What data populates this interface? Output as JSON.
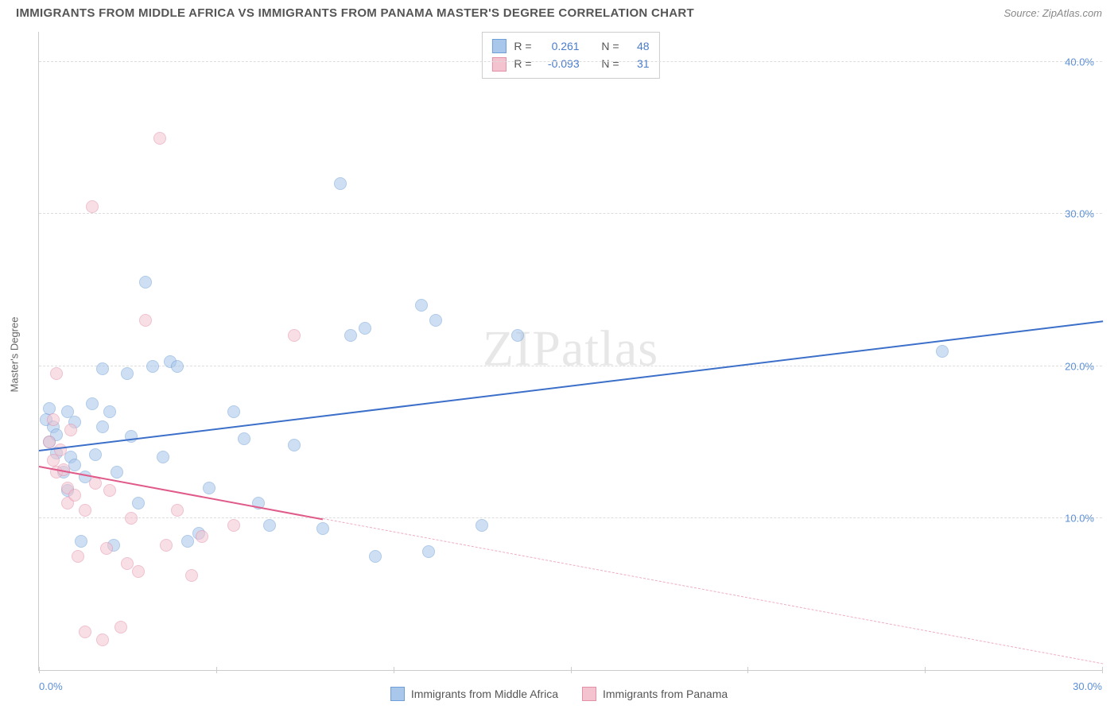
{
  "title": "IMMIGRANTS FROM MIDDLE AFRICA VS IMMIGRANTS FROM PANAMA MASTER'S DEGREE CORRELATION CHART",
  "source": "Source: ZipAtlas.com",
  "watermark": "ZIPatlas",
  "y_axis_label": "Master's Degree",
  "chart": {
    "type": "scatter",
    "xlim": [
      0,
      30
    ],
    "ylim": [
      0,
      42
    ],
    "x_ticks": [
      0,
      5,
      10,
      15,
      20,
      25,
      30
    ],
    "x_tick_labels": {
      "0": "0.0%",
      "30": "30.0%"
    },
    "y_gridlines": [
      10,
      20,
      30,
      40
    ],
    "y_tick_labels": {
      "10": "10.0%",
      "20": "20.0%",
      "30": "30.0%",
      "40": "40.0%"
    },
    "background_color": "#ffffff",
    "grid_color": "#dddddd",
    "axis_color": "#cccccc",
    "tick_label_color": "#5b8fd6",
    "marker_radius": 8,
    "marker_opacity": 0.55,
    "series": [
      {
        "name": "Immigrants from Middle Africa",
        "fill": "#a9c6eb",
        "stroke": "#6f9fd8",
        "trend_color": "#3b6fc9",
        "r_label": "R =",
        "r_value": "0.261",
        "n_label": "N =",
        "n_value": "48",
        "trend": {
          "x1": 0,
          "y1": 14.5,
          "x2": 30,
          "y2": 23
        },
        "trend_solid_until_x": 30,
        "points": [
          [
            0.2,
            16.5
          ],
          [
            0.3,
            15.0
          ],
          [
            0.3,
            17.2
          ],
          [
            0.4,
            16.0
          ],
          [
            0.5,
            14.3
          ],
          [
            0.5,
            15.5
          ],
          [
            0.7,
            13.0
          ],
          [
            0.8,
            11.8
          ],
          [
            0.8,
            17.0
          ],
          [
            0.9,
            14.0
          ],
          [
            1.0,
            16.3
          ],
          [
            1.0,
            13.5
          ],
          [
            1.2,
            8.5
          ],
          [
            1.3,
            12.7
          ],
          [
            1.5,
            17.5
          ],
          [
            1.6,
            14.2
          ],
          [
            1.8,
            16.0
          ],
          [
            1.8,
            19.8
          ],
          [
            2.0,
            17.0
          ],
          [
            2.1,
            8.2
          ],
          [
            2.2,
            13.0
          ],
          [
            2.5,
            19.5
          ],
          [
            2.6,
            15.4
          ],
          [
            2.8,
            11.0
          ],
          [
            3.0,
            25.5
          ],
          [
            3.2,
            20.0
          ],
          [
            3.5,
            14.0
          ],
          [
            3.7,
            20.3
          ],
          [
            3.9,
            20.0
          ],
          [
            4.2,
            8.5
          ],
          [
            4.5,
            9.0
          ],
          [
            4.8,
            12.0
          ],
          [
            5.5,
            17.0
          ],
          [
            5.8,
            15.2
          ],
          [
            6.2,
            11.0
          ],
          [
            6.5,
            9.5
          ],
          [
            7.2,
            14.8
          ],
          [
            8.0,
            9.3
          ],
          [
            8.5,
            32.0
          ],
          [
            8.8,
            22.0
          ],
          [
            9.2,
            22.5
          ],
          [
            9.5,
            7.5
          ],
          [
            10.8,
            24.0
          ],
          [
            11.0,
            7.8
          ],
          [
            11.2,
            23.0
          ],
          [
            12.5,
            9.5
          ],
          [
            13.5,
            22.0
          ],
          [
            25.5,
            21.0
          ]
        ]
      },
      {
        "name": "Immigrants from Panama",
        "fill": "#f3c4d0",
        "stroke": "#e48fa8",
        "trend_color": "#e05a8a",
        "r_label": "R =",
        "r_value": "-0.093",
        "n_label": "N =",
        "n_value": "31",
        "trend": {
          "x1": 0,
          "y1": 13.5,
          "x2": 30,
          "y2": 0.5
        },
        "trend_solid_until_x": 8,
        "points": [
          [
            0.3,
            15.0
          ],
          [
            0.4,
            16.5
          ],
          [
            0.4,
            13.8
          ],
          [
            0.5,
            13.0
          ],
          [
            0.5,
            19.5
          ],
          [
            0.6,
            14.5
          ],
          [
            0.7,
            13.2
          ],
          [
            0.8,
            11.0
          ],
          [
            0.8,
            12.0
          ],
          [
            0.9,
            15.8
          ],
          [
            1.0,
            11.5
          ],
          [
            1.1,
            7.5
          ],
          [
            1.3,
            10.5
          ],
          [
            1.3,
            2.5
          ],
          [
            1.5,
            30.5
          ],
          [
            1.6,
            12.3
          ],
          [
            1.8,
            2.0
          ],
          [
            1.9,
            8.0
          ],
          [
            2.0,
            11.8
          ],
          [
            2.3,
            2.8
          ],
          [
            2.5,
            7.0
          ],
          [
            2.6,
            10.0
          ],
          [
            2.8,
            6.5
          ],
          [
            3.0,
            23.0
          ],
          [
            3.4,
            35.0
          ],
          [
            3.6,
            8.2
          ],
          [
            3.9,
            10.5
          ],
          [
            4.3,
            6.2
          ],
          [
            4.6,
            8.8
          ],
          [
            5.5,
            9.5
          ],
          [
            7.2,
            22.0
          ]
        ]
      }
    ]
  },
  "legend_bottom": [
    {
      "swatch_fill": "#a9c6eb",
      "swatch_stroke": "#6f9fd8",
      "label": "Immigrants from Middle Africa"
    },
    {
      "swatch_fill": "#f3c4d0",
      "swatch_stroke": "#e48fa8",
      "label": "Immigrants from Panama"
    }
  ]
}
